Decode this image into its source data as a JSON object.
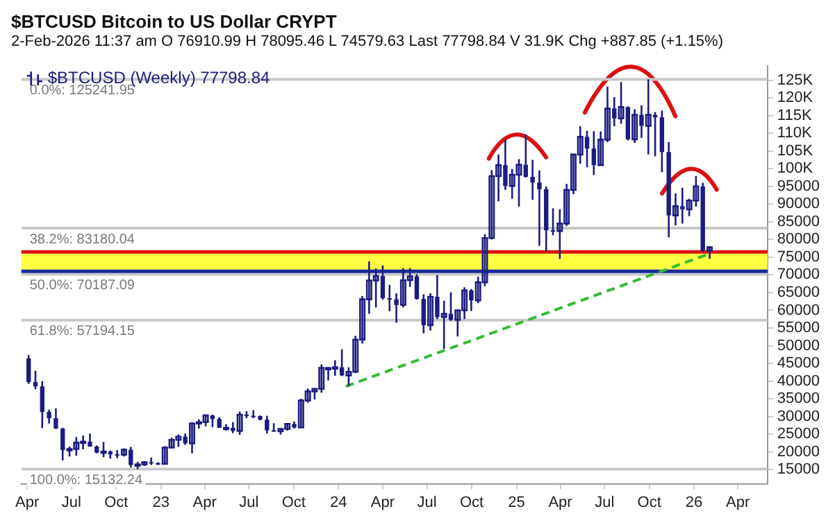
{
  "chart_data": {
    "type": "candlestick",
    "title": "$BTCUSD Bitcoin to US Dollar CRYPT",
    "subtitle": "2-Feb-2026 11:37 am   O 76910.99  H 78095.46  L 74579.63  Last 77798.84  V 31.9K  Chg +887.85 (+1.15%)",
    "series": [
      {
        "name": "$BTCUSD (Weekly) 77798.84",
        "color": "#1c1c80",
        "x": [
          "2022-04-04",
          "2022-04-18",
          "2022-05-02",
          "2022-05-16",
          "2022-05-30",
          "2022-06-13",
          "2022-06-27",
          "2022-07-11",
          "2022-07-25",
          "2022-08-08",
          "2022-08-22",
          "2022-09-05",
          "2022-09-19",
          "2022-10-03",
          "2022-10-17",
          "2022-10-31",
          "2022-11-14",
          "2022-11-28",
          "2022-12-12",
          "2022-12-26",
          "2023-01-09",
          "2023-01-23",
          "2023-02-06",
          "2023-02-20",
          "2023-03-06",
          "2023-03-20",
          "2023-04-03",
          "2023-04-17",
          "2023-05-01",
          "2023-05-15",
          "2023-05-29",
          "2023-06-12",
          "2023-06-26",
          "2023-07-10",
          "2023-07-24",
          "2023-08-07",
          "2023-08-21",
          "2023-09-04",
          "2023-09-18",
          "2023-10-02",
          "2023-10-16",
          "2023-10-30",
          "2023-11-13",
          "2023-11-27",
          "2023-12-11",
          "2023-12-25",
          "2024-01-08",
          "2024-01-22",
          "2024-02-05",
          "2024-02-19",
          "2024-03-04",
          "2024-03-18",
          "2024-04-01",
          "2024-04-15",
          "2024-04-29",
          "2024-05-13",
          "2024-05-27",
          "2024-06-10",
          "2024-06-24",
          "2024-07-08",
          "2024-07-22",
          "2024-08-05",
          "2024-08-19",
          "2024-09-02",
          "2024-09-16",
          "2024-09-30",
          "2024-10-14",
          "2024-10-28",
          "2024-11-11",
          "2024-11-25",
          "2024-12-09",
          "2024-12-23",
          "2025-01-06",
          "2025-01-20",
          "2025-02-03",
          "2025-02-17",
          "2025-03-03",
          "2025-03-17",
          "2025-03-31",
          "2025-04-14",
          "2025-04-28",
          "2025-05-12",
          "2025-05-26",
          "2025-06-09",
          "2025-06-23",
          "2025-07-07",
          "2025-07-21",
          "2025-08-04",
          "2025-08-18",
          "2025-09-01",
          "2025-09-15",
          "2025-09-29",
          "2025-10-13",
          "2025-10-27",
          "2025-11-10",
          "2025-11-24",
          "2025-12-08",
          "2025-12-22",
          "2026-01-05",
          "2026-01-19",
          "2026-02-02"
        ],
        "ohlc": [
          [
            46400,
            47400,
            39200,
            39700
          ],
          [
            39700,
            42900,
            37700,
            38500
          ],
          [
            38500,
            40000,
            26700,
            31300
          ],
          [
            31300,
            31900,
            28000,
            29500
          ],
          [
            29500,
            32300,
            26500,
            26600
          ],
          [
            26600,
            26800,
            17600,
            20500
          ],
          [
            20500,
            21500,
            18700,
            20800
          ],
          [
            20800,
            24200,
            18900,
            22600
          ],
          [
            22600,
            24600,
            20700,
            22900
          ],
          [
            22900,
            25200,
            21500,
            21500
          ],
          [
            21500,
            21800,
            19600,
            19800
          ],
          [
            19800,
            22800,
            18500,
            20100
          ],
          [
            20100,
            20400,
            18100,
            19300
          ],
          [
            19300,
            20500,
            18200,
            19200
          ],
          [
            19200,
            21000,
            18700,
            20600
          ],
          [
            20600,
            21400,
            15600,
            16300
          ],
          [
            16300,
            17200,
            15132.24,
            16450
          ],
          [
            16450,
            17400,
            16000,
            17100
          ],
          [
            17100,
            18400,
            16300,
            16800
          ],
          [
            16800,
            17100,
            16300,
            16600
          ],
          [
            16600,
            21600,
            16600,
            21200
          ],
          [
            21200,
            24000,
            21000,
            23400
          ],
          [
            23400,
            24900,
            21400,
            24300
          ],
          [
            24300,
            25200,
            22000,
            22400
          ],
          [
            22400,
            28400,
            19600,
            28000
          ],
          [
            28000,
            29200,
            26600,
            28400
          ],
          [
            28400,
            30600,
            27200,
            30300
          ],
          [
            30300,
            30500,
            27000,
            29300
          ],
          [
            29300,
            29800,
            26800,
            26800
          ],
          [
            26800,
            27800,
            26000,
            26800
          ],
          [
            26800,
            28400,
            25300,
            25900
          ],
          [
            25900,
            31400,
            24800,
            30500
          ],
          [
            30500,
            31500,
            29500,
            30200
          ],
          [
            30200,
            31800,
            29500,
            30100
          ],
          [
            30100,
            30300,
            28900,
            29100
          ],
          [
            29100,
            30200,
            25200,
            26100
          ],
          [
            26100,
            28100,
            25700,
            25800
          ],
          [
            25800,
            26600,
            24900,
            26500
          ],
          [
            26500,
            28000,
            26000,
            27900
          ],
          [
            27900,
            28600,
            26600,
            26900
          ],
          [
            26900,
            35000,
            26800,
            34500
          ],
          [
            34500,
            37900,
            33900,
            37100
          ],
          [
            37100,
            38000,
            34800,
            37800
          ],
          [
            37800,
            44700,
            36700,
            43700
          ],
          [
            43700,
            43900,
            40200,
            43700
          ],
          [
            43700,
            45900,
            41500,
            43900
          ],
          [
            43900,
            49000,
            41400,
            41600
          ],
          [
            41600,
            43900,
            38500,
            42600
          ],
          [
            42600,
            52800,
            42300,
            51700
          ],
          [
            51700,
            64000,
            50600,
            63100
          ],
          [
            63100,
            73800,
            59000,
            68400
          ],
          [
            68400,
            71800,
            60800,
            69700
          ],
          [
            69700,
            72700,
            63000,
            63400
          ],
          [
            63400,
            67200,
            59700,
            63100
          ],
          [
            63100,
            64800,
            56500,
            61500
          ],
          [
            61500,
            71900,
            60800,
            68500
          ],
          [
            68500,
            71900,
            66600,
            69600
          ],
          [
            69600,
            70200,
            63000,
            63200
          ],
          [
            63200,
            64500,
            53500,
            55800
          ],
          [
            55800,
            64800,
            54300,
            63800
          ],
          [
            63800,
            70000,
            57500,
            58100
          ],
          [
            58100,
            62700,
            49100,
            59000
          ],
          [
            59000,
            65100,
            57000,
            57300
          ],
          [
            57300,
            60200,
            52600,
            60000
          ],
          [
            60000,
            66500,
            57500,
            65600
          ],
          [
            65600,
            66000,
            59800,
            62800
          ],
          [
            62800,
            69500,
            62000,
            67900
          ],
          [
            67900,
            81500,
            66800,
            80400
          ],
          [
            80400,
            99600,
            80000,
            97900
          ],
          [
            97900,
            104000,
            90800,
            101000
          ],
          [
            101000,
            108300,
            94000,
            95100
          ],
          [
            95100,
            99900,
            91500,
            98300
          ],
          [
            98300,
            102700,
            89300,
            101100
          ],
          [
            101100,
            109600,
            97500,
            97700
          ],
          [
            97700,
            102500,
            91200,
            96100
          ],
          [
            96100,
            99500,
            78200,
            94200
          ],
          [
            94200,
            95000,
            76600,
            82600
          ],
          [
            82600,
            88800,
            81200,
            82400
          ],
          [
            82400,
            88500,
            74500,
            84500
          ],
          [
            84500,
            95700,
            83800,
            94000
          ],
          [
            94000,
            104000,
            92800,
            104000
          ],
          [
            104000,
            112000,
            101400,
            109000
          ],
          [
            109000,
            110700,
            100400,
            105700
          ],
          [
            105700,
            110600,
            98200,
            101000
          ],
          [
            101000,
            110500,
            101000,
            108200
          ],
          [
            108200,
            123200,
            107500,
            117000
          ],
          [
            117000,
            120200,
            112000,
            114200
          ],
          [
            114200,
            124500,
            112700,
            117400
          ],
          [
            117400,
            117600,
            108000,
            108300
          ],
          [
            108300,
            116800,
            107300,
            115200
          ],
          [
            115200,
            117900,
            108700,
            112100
          ],
          [
            112100,
            125241.95,
            104000,
            115200
          ],
          [
            115200,
            116000,
            103500,
            114500
          ],
          [
            114500,
            116400,
            99000,
            104700
          ],
          [
            104700,
            107500,
            80600,
            86800
          ],
          [
            86800,
            93000,
            84000,
            89400
          ],
          [
            89400,
            94600,
            84500,
            88500
          ],
          [
            88500,
            91500,
            86600,
            91000
          ],
          [
            91000,
            97900,
            89300,
            95000
          ],
          [
            95000,
            96000,
            76500,
            76910.99
          ],
          [
            76910.99,
            78095.46,
            74579.63,
            77798.84
          ]
        ]
      },
      {
        "type": "line",
        "color": "#33bb33",
        "line_style": "dashed",
        "x": [
          "2024-01-16",
          "2026-02-02"
        ],
        "values": [
          38500,
          76000
        ]
      }
    ],
    "ref_lines": [
      {
        "axis": "y",
        "value": 125241.95,
        "label": "0.0%: 125241.95",
        "color": "#c8c8c8"
      },
      {
        "axis": "y",
        "value": 83180.04,
        "label": "38.2%: 83180.04",
        "color": "#c8c8c8"
      },
      {
        "axis": "y",
        "value": 70187.09,
        "label": "50.0%: 70187.09",
        "color": "#c8c8c8"
      },
      {
        "axis": "y",
        "value": 57194.15,
        "label": "61.8%: 57194.15",
        "color": "#c8c8c8"
      },
      {
        "axis": "y",
        "value": 15132.24,
        "label": "100.0%: 15132.24",
        "color": "#c8c8c8"
      },
      {
        "axis": "y",
        "value": 71000,
        "color": "#1c2ca0"
      },
      {
        "axis": "y",
        "value": 76500,
        "color": "#dd1111"
      }
    ],
    "bands": [
      {
        "axis": "y",
        "from": 71000,
        "to": 76500,
        "color": "#ffff44"
      }
    ],
    "xlim": [
      "2022-03-20",
      "2026-06-01"
    ],
    "xticks": [
      {
        "value": "2022-04",
        "label": "Apr"
      },
      {
        "value": "2022-07",
        "label": "Jul"
      },
      {
        "value": "2022-10",
        "label": "Oct"
      },
      {
        "value": "2023",
        "label": "23"
      },
      {
        "value": "2023-04",
        "label": "Apr"
      },
      {
        "value": "2023-07",
        "label": "Jul"
      },
      {
        "value": "2023-10",
        "label": "Oct"
      },
      {
        "value": "2024",
        "label": "24"
      },
      {
        "value": "2024-04",
        "label": "Apr"
      },
      {
        "value": "2024-07",
        "label": "Jul"
      },
      {
        "value": "2024-10",
        "label": "Oct"
      },
      {
        "value": "2025",
        "label": "25"
      },
      {
        "value": "2025-04",
        "label": "Apr"
      },
      {
        "value": "2025-07",
        "label": "Jul"
      },
      {
        "value": "2025-10",
        "label": "Oct"
      },
      {
        "value": "2026",
        "label": "26"
      },
      {
        "value": "2026-04",
        "label": "Apr"
      }
    ],
    "ylim": [
      11000,
      129000
    ],
    "yticks": [
      15000,
      20000,
      25000,
      30000,
      35000,
      40000,
      45000,
      50000,
      55000,
      60000,
      65000,
      70000,
      75000,
      80000,
      85000,
      90000,
      95000,
      {
        "value": 100000,
        "label": "100K"
      },
      {
        "value": 105000,
        "label": "105K"
      },
      {
        "value": 110000,
        "label": "110K"
      },
      {
        "value": 115000,
        "label": "115K"
      },
      {
        "value": 120000,
        "label": "120K"
      },
      {
        "value": 125000,
        "label": "125K"
      }
    ],
    "legend": "top left",
    "marker": "none"
  }
}
